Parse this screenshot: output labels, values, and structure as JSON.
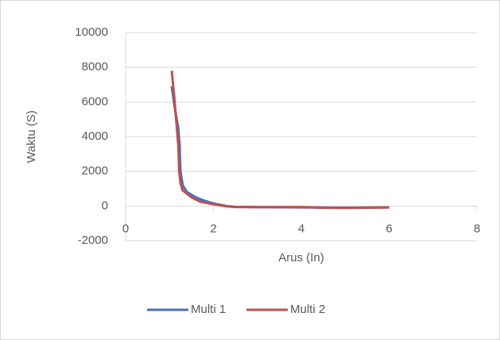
{
  "chart_data": {
    "type": "line",
    "x_label": "Arus (In)",
    "y_label": "Waktu (S)",
    "xlim": [
      0,
      8
    ],
    "xticks": [
      0,
      2,
      4,
      6,
      8
    ],
    "ylim": [
      -2000,
      10000
    ],
    "yticks": [
      -2000,
      0,
      2000,
      4000,
      6000,
      8000,
      10000
    ],
    "grid": true,
    "legend": "bottom",
    "series": [
      {
        "name": "Multi 1",
        "color": "#4472c4",
        "x": [
          1.05,
          1.1,
          1.15,
          1.2,
          1.23,
          1.25,
          1.3,
          1.4,
          1.6,
          1.8,
          2,
          2.3,
          2.5,
          3,
          4,
          5,
          6
        ],
        "values": [
          6900,
          6000,
          5200,
          4500,
          3500,
          2000,
          1200,
          800,
          500,
          300,
          150,
          0,
          -50,
          -60,
          -80,
          -100,
          -80
        ]
      },
      {
        "name": "Multi 2",
        "color": "#c0504d",
        "x": [
          1.05,
          1.1,
          1.15,
          1.2,
          1.22,
          1.25,
          1.3,
          1.5,
          1.7,
          2,
          2.3,
          2.5,
          3,
          4,
          4.5,
          5,
          6
        ],
        "values": [
          7800,
          6500,
          5000,
          3500,
          2000,
          1300,
          900,
          500,
          250,
          100,
          -20,
          -60,
          -70,
          -60,
          -100,
          -110,
          -80
        ]
      }
    ]
  }
}
